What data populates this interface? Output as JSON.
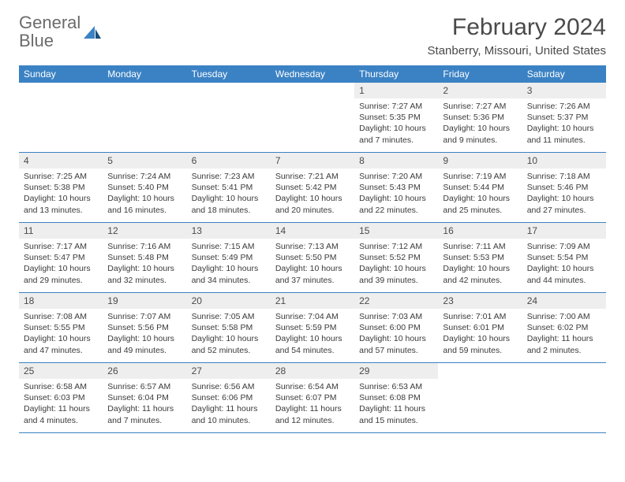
{
  "logo": {
    "word1": "General",
    "word2": "Blue"
  },
  "title": "February 2024",
  "location": "Stanberry, Missouri, United States",
  "colors": {
    "header_bg": "#3b82c4",
    "header_text": "#ffffff",
    "daynum_bg": "#eeeeee",
    "row_border": "#3b82c4",
    "logo_grey": "#6b6b6b",
    "logo_blue": "#3b82c4",
    "body_text": "#3a3a3a"
  },
  "weekdays": [
    "Sunday",
    "Monday",
    "Tuesday",
    "Wednesday",
    "Thursday",
    "Friday",
    "Saturday"
  ],
  "weeks": [
    [
      null,
      null,
      null,
      null,
      {
        "n": "1",
        "sunrise": "7:27 AM",
        "sunset": "5:35 PM",
        "daylight": "10 hours and 7 minutes."
      },
      {
        "n": "2",
        "sunrise": "7:27 AM",
        "sunset": "5:36 PM",
        "daylight": "10 hours and 9 minutes."
      },
      {
        "n": "3",
        "sunrise": "7:26 AM",
        "sunset": "5:37 PM",
        "daylight": "10 hours and 11 minutes."
      }
    ],
    [
      {
        "n": "4",
        "sunrise": "7:25 AM",
        "sunset": "5:38 PM",
        "daylight": "10 hours and 13 minutes."
      },
      {
        "n": "5",
        "sunrise": "7:24 AM",
        "sunset": "5:40 PM",
        "daylight": "10 hours and 16 minutes."
      },
      {
        "n": "6",
        "sunrise": "7:23 AM",
        "sunset": "5:41 PM",
        "daylight": "10 hours and 18 minutes."
      },
      {
        "n": "7",
        "sunrise": "7:21 AM",
        "sunset": "5:42 PM",
        "daylight": "10 hours and 20 minutes."
      },
      {
        "n": "8",
        "sunrise": "7:20 AM",
        "sunset": "5:43 PM",
        "daylight": "10 hours and 22 minutes."
      },
      {
        "n": "9",
        "sunrise": "7:19 AM",
        "sunset": "5:44 PM",
        "daylight": "10 hours and 25 minutes."
      },
      {
        "n": "10",
        "sunrise": "7:18 AM",
        "sunset": "5:46 PM",
        "daylight": "10 hours and 27 minutes."
      }
    ],
    [
      {
        "n": "11",
        "sunrise": "7:17 AM",
        "sunset": "5:47 PM",
        "daylight": "10 hours and 29 minutes."
      },
      {
        "n": "12",
        "sunrise": "7:16 AM",
        "sunset": "5:48 PM",
        "daylight": "10 hours and 32 minutes."
      },
      {
        "n": "13",
        "sunrise": "7:15 AM",
        "sunset": "5:49 PM",
        "daylight": "10 hours and 34 minutes."
      },
      {
        "n": "14",
        "sunrise": "7:13 AM",
        "sunset": "5:50 PM",
        "daylight": "10 hours and 37 minutes."
      },
      {
        "n": "15",
        "sunrise": "7:12 AM",
        "sunset": "5:52 PM",
        "daylight": "10 hours and 39 minutes."
      },
      {
        "n": "16",
        "sunrise": "7:11 AM",
        "sunset": "5:53 PM",
        "daylight": "10 hours and 42 minutes."
      },
      {
        "n": "17",
        "sunrise": "7:09 AM",
        "sunset": "5:54 PM",
        "daylight": "10 hours and 44 minutes."
      }
    ],
    [
      {
        "n": "18",
        "sunrise": "7:08 AM",
        "sunset": "5:55 PM",
        "daylight": "10 hours and 47 minutes."
      },
      {
        "n": "19",
        "sunrise": "7:07 AM",
        "sunset": "5:56 PM",
        "daylight": "10 hours and 49 minutes."
      },
      {
        "n": "20",
        "sunrise": "7:05 AM",
        "sunset": "5:58 PM",
        "daylight": "10 hours and 52 minutes."
      },
      {
        "n": "21",
        "sunrise": "7:04 AM",
        "sunset": "5:59 PM",
        "daylight": "10 hours and 54 minutes."
      },
      {
        "n": "22",
        "sunrise": "7:03 AM",
        "sunset": "6:00 PM",
        "daylight": "10 hours and 57 minutes."
      },
      {
        "n": "23",
        "sunrise": "7:01 AM",
        "sunset": "6:01 PM",
        "daylight": "10 hours and 59 minutes."
      },
      {
        "n": "24",
        "sunrise": "7:00 AM",
        "sunset": "6:02 PM",
        "daylight": "11 hours and 2 minutes."
      }
    ],
    [
      {
        "n": "25",
        "sunrise": "6:58 AM",
        "sunset": "6:03 PM",
        "daylight": "11 hours and 4 minutes."
      },
      {
        "n": "26",
        "sunrise": "6:57 AM",
        "sunset": "6:04 PM",
        "daylight": "11 hours and 7 minutes."
      },
      {
        "n": "27",
        "sunrise": "6:56 AM",
        "sunset": "6:06 PM",
        "daylight": "11 hours and 10 minutes."
      },
      {
        "n": "28",
        "sunrise": "6:54 AM",
        "sunset": "6:07 PM",
        "daylight": "11 hours and 12 minutes."
      },
      {
        "n": "29",
        "sunrise": "6:53 AM",
        "sunset": "6:08 PM",
        "daylight": "11 hours and 15 minutes."
      },
      null,
      null
    ]
  ],
  "labels": {
    "sunrise": "Sunrise:",
    "sunset": "Sunset:",
    "daylight": "Daylight:"
  }
}
